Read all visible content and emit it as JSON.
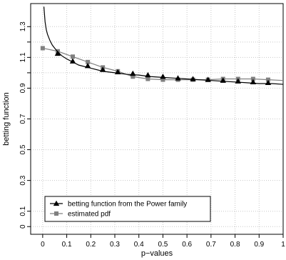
{
  "chart_data": {
    "type": "line",
    "xlabel": "p−values",
    "ylabel": "betting function",
    "xlim": [
      -0.05,
      1.0
    ],
    "ylim": [
      -0.05,
      1.45
    ],
    "x_ticks": [
      0,
      0.1,
      0.2,
      0.3,
      0.4,
      0.5,
      0.6,
      0.7,
      0.8,
      0.9,
      1
    ],
    "x_tick_labels": [
      "0",
      "0.1",
      "0.2",
      "0.3",
      "0.4",
      "0.5",
      "0.6",
      "0.7",
      "0.8",
      "0.9",
      "1"
    ],
    "y_ticks": [
      0,
      0.1,
      0.3,
      0.5,
      0.7,
      0.9,
      1.1,
      1.3
    ],
    "y_tick_labels": [
      "0",
      "0.1",
      "0.3",
      "0.5",
      "0.7",
      "0.9",
      "1.1",
      "1.3"
    ],
    "y_minor_ticks": [
      1.0,
      1.2
    ],
    "grid": true,
    "legend_position": "bottom-left",
    "series": [
      {
        "name": "betting function from the Power family",
        "color": "#000000",
        "marker": "triangle",
        "line_x": [
          0.005,
          0.01,
          0.015,
          0.02,
          0.03,
          0.04,
          0.05,
          0.06,
          0.08,
          0.1,
          0.125,
          0.15,
          0.2,
          0.25,
          0.3,
          0.35,
          0.4,
          0.45,
          0.5,
          0.55,
          0.6,
          0.65,
          0.7,
          0.75,
          0.8,
          0.85,
          0.9,
          0.95,
          1.0
        ],
        "line_y": [
          1.43,
          1.33,
          1.28,
          1.25,
          1.21,
          1.18,
          1.16,
          1.14,
          1.11,
          1.09,
          1.07,
          1.05,
          1.03,
          1.01,
          1.0,
          0.99,
          0.985,
          0.975,
          0.97,
          0.965,
          0.96,
          0.955,
          0.95,
          0.945,
          0.94,
          0.935,
          0.93,
          0.93,
          0.925
        ],
        "marker_x": [
          0.0625,
          0.125,
          0.1875,
          0.25,
          0.3125,
          0.375,
          0.4375,
          0.5,
          0.5625,
          0.625,
          0.6875,
          0.75,
          0.8125,
          0.875,
          0.9375
        ],
        "marker_y": [
          1.125,
          1.075,
          1.045,
          1.02,
          1.005,
          0.995,
          0.985,
          0.975,
          0.965,
          0.96,
          0.955,
          0.95,
          0.945,
          0.94,
          0.935
        ]
      },
      {
        "name": "estimated pdf",
        "color": "#808080",
        "marker": "square",
        "line_x": [
          0.0,
          0.0625,
          0.125,
          0.1875,
          0.25,
          0.3125,
          0.375,
          0.4375,
          0.5,
          0.5625,
          0.625,
          0.6875,
          0.75,
          0.8125,
          0.875,
          0.9375,
          1.0
        ],
        "line_y": [
          1.16,
          1.14,
          1.105,
          1.07,
          1.035,
          1.01,
          0.975,
          0.96,
          0.955,
          0.955,
          0.955,
          0.955,
          0.96,
          0.96,
          0.96,
          0.955,
          0.95
        ],
        "marker_x": [
          0.0,
          0.0625,
          0.125,
          0.1875,
          0.25,
          0.3125,
          0.375,
          0.4375,
          0.5,
          0.5625,
          0.625,
          0.6875,
          0.75,
          0.8125,
          0.875,
          0.9375
        ],
        "marker_y": [
          1.16,
          1.14,
          1.105,
          1.07,
          1.035,
          1.01,
          0.975,
          0.96,
          0.955,
          0.955,
          0.955,
          0.955,
          0.96,
          0.96,
          0.96,
          0.955
        ]
      }
    ]
  }
}
